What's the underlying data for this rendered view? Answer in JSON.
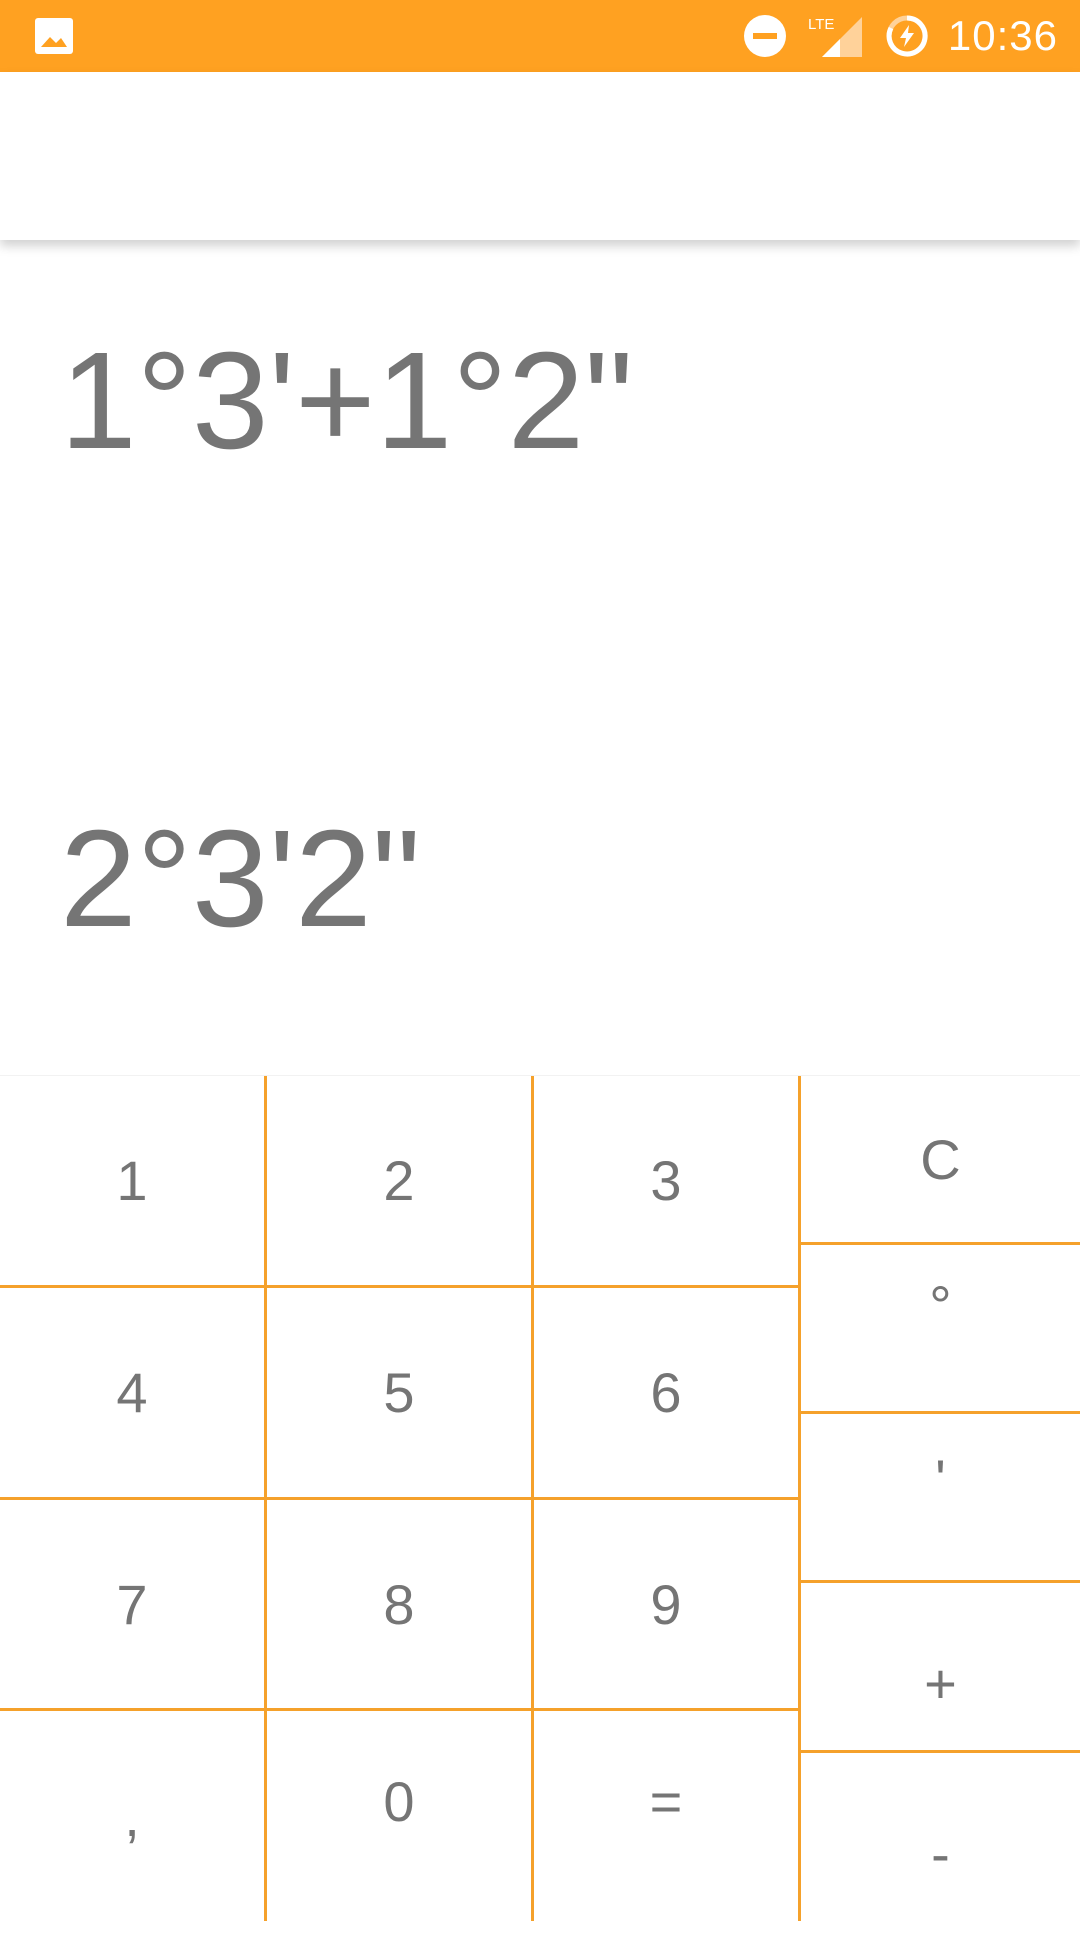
{
  "status_bar": {
    "time": "10:36",
    "network": "LTE",
    "icons": [
      "image-icon",
      "do-not-disturb-icon",
      "lte-signal-icon",
      "battery-charging-icon"
    ],
    "background": "#FFA121"
  },
  "display": {
    "expression": "1°3'+1°2\"",
    "result": "2°3'2\""
  },
  "keypad": {
    "line_color": "#F5A12B",
    "text_color": "#757575",
    "keys": {
      "k1": "1",
      "k2": "2",
      "k3": "3",
      "k4": "4",
      "k5": "5",
      "k6": "6",
      "k7": "7",
      "k8": "8",
      "k9": "9",
      "comma": ",",
      "k0": "0",
      "equals": "=",
      "clear": "C",
      "degree": "°",
      "minute": "'",
      "plus": "+",
      "minus": "-"
    }
  }
}
